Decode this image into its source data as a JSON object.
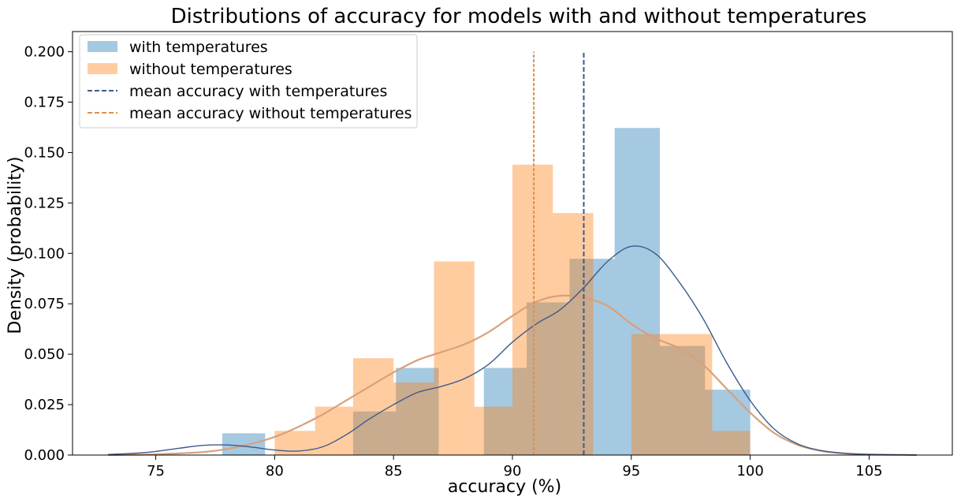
{
  "chart_data": {
    "type": "bar",
    "title": "Distributions of accuracy for models with and without temperatures",
    "xlabel": "accuracy (%)",
    "ylabel": "Density (probability)",
    "xlim": [
      71.5,
      108.5
    ],
    "ylim": [
      0,
      0.21
    ],
    "xticks": [
      75,
      80,
      85,
      90,
      95,
      100,
      105
    ],
    "yticks": [
      0.0,
      0.025,
      0.05,
      0.075,
      0.1,
      0.125,
      0.15,
      0.175,
      0.2
    ],
    "ytick_labels": [
      "0.000",
      "0.025",
      "0.050",
      "0.075",
      "0.100",
      "0.125",
      "0.150",
      "0.175",
      "0.200"
    ],
    "grid": false,
    "legend_position": "top-left",
    "colors": {
      "with": "#1f77b4",
      "without": "#ff7f0e",
      "with_kde": "#3b5b8c",
      "without_kde": "#d9a07a"
    },
    "series": [
      {
        "name": "with temperatures",
        "type": "histogram",
        "bins": [
          {
            "x0": 77.8,
            "x1": 79.6,
            "density": 0.0108
          },
          {
            "x0": 79.6,
            "x1": 81.5,
            "density": 0.0
          },
          {
            "x0": 81.5,
            "x1": 83.3,
            "density": 0.0
          },
          {
            "x0": 83.3,
            "x1": 85.1,
            "density": 0.0216
          },
          {
            "x0": 85.1,
            "x1": 86.9,
            "density": 0.0432
          },
          {
            "x0": 86.9,
            "x1": 88.8,
            "density": 0.0
          },
          {
            "x0": 88.8,
            "x1": 90.6,
            "density": 0.0432
          },
          {
            "x0": 90.6,
            "x1": 92.4,
            "density": 0.0757
          },
          {
            "x0": 92.4,
            "x1": 94.3,
            "density": 0.0973
          },
          {
            "x0": 94.3,
            "x1": 96.2,
            "density": 0.1622
          },
          {
            "x0": 96.2,
            "x1": 98.1,
            "density": 0.0541
          },
          {
            "x0": 98.1,
            "x1": 100.0,
            "density": 0.0324
          }
        ]
      },
      {
        "name": "without temperatures",
        "type": "histogram",
        "bins": [
          {
            "x0": 80.0,
            "x1": 81.7,
            "density": 0.012
          },
          {
            "x0": 81.7,
            "x1": 83.3,
            "density": 0.024
          },
          {
            "x0": 83.3,
            "x1": 85.0,
            "density": 0.048
          },
          {
            "x0": 85.0,
            "x1": 86.7,
            "density": 0.036
          },
          {
            "x0": 86.7,
            "x1": 88.4,
            "density": 0.096
          },
          {
            "x0": 88.4,
            "x1": 90.0,
            "density": 0.024
          },
          {
            "x0": 90.0,
            "x1": 91.7,
            "density": 0.144
          },
          {
            "x0": 91.7,
            "x1": 93.4,
            "density": 0.12
          },
          {
            "x0": 93.4,
            "x1": 95.0,
            "density": 0.0
          },
          {
            "x0": 95.0,
            "x1": 96.7,
            "density": 0.06
          },
          {
            "x0": 96.7,
            "x1": 98.4,
            "density": 0.06
          },
          {
            "x0": 98.4,
            "x1": 100.0,
            "density": 0.012
          }
        ]
      },
      {
        "name": "with temperatures KDE",
        "type": "line",
        "x": [
          73,
          74,
          75,
          76,
          77,
          78,
          79,
          80,
          81,
          82,
          83,
          84,
          85,
          86,
          87,
          88,
          89,
          90,
          91,
          92,
          93,
          94,
          95,
          96,
          97,
          98,
          99,
          100,
          101,
          102,
          103,
          104,
          105,
          106,
          107
        ],
        "y": [
          0.0003,
          0.0008,
          0.0018,
          0.0034,
          0.0048,
          0.005,
          0.004,
          0.0025,
          0.002,
          0.004,
          0.01,
          0.018,
          0.025,
          0.031,
          0.034,
          0.038,
          0.045,
          0.056,
          0.065,
          0.072,
          0.083,
          0.096,
          0.1035,
          0.1,
          0.086,
          0.068,
          0.046,
          0.027,
          0.013,
          0.0055,
          0.0022,
          0.0008,
          0.0003,
          0.0001,
          0.0
        ]
      },
      {
        "name": "without temperatures KDE",
        "type": "line",
        "x": [
          73,
          75,
          77,
          78,
          79,
          80,
          81,
          82,
          83,
          84,
          85,
          86,
          87,
          88,
          89,
          90,
          91,
          92,
          93,
          94,
          95,
          96,
          97,
          98,
          99,
          100,
          101,
          102,
          103,
          104,
          105,
          107
        ],
        "y": [
          0.0,
          0.0004,
          0.0015,
          0.003,
          0.0055,
          0.009,
          0.014,
          0.02,
          0.027,
          0.034,
          0.041,
          0.047,
          0.051,
          0.055,
          0.061,
          0.069,
          0.076,
          0.079,
          0.078,
          0.074,
          0.065,
          0.058,
          0.053,
          0.045,
          0.033,
          0.021,
          0.011,
          0.005,
          0.002,
          0.0008,
          0.0003,
          0.0
        ]
      },
      {
        "name": "mean accuracy with temperatures",
        "type": "vline",
        "x": 93.0,
        "y_range": [
          0,
          0.2
        ],
        "style": "dashed"
      },
      {
        "name": "mean accuracy without temperatures",
        "type": "vline",
        "x": 90.9,
        "y_range": [
          0,
          0.2
        ],
        "style": "dashed"
      }
    ],
    "legend": [
      {
        "label": "with temperatures",
        "kind": "patch",
        "color": "#1f77b4"
      },
      {
        "label": "without temperatures",
        "kind": "patch",
        "color": "#ff7f0e"
      },
      {
        "label": "mean accuracy with temperatures",
        "kind": "dashed",
        "color": "#3b5b8c"
      },
      {
        "label": "mean accuracy without temperatures",
        "kind": "dashed",
        "color": "#e0904a"
      }
    ]
  }
}
